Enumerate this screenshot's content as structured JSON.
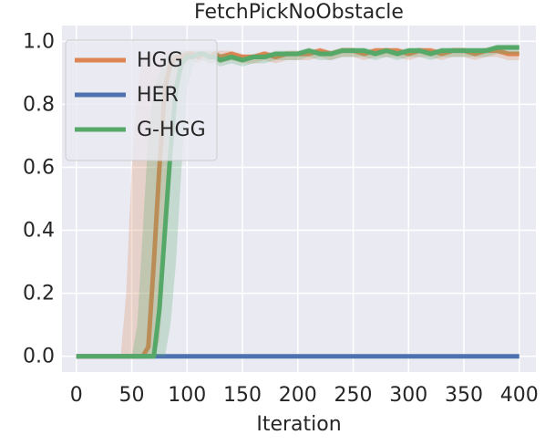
{
  "chart_data": {
    "type": "line",
    "title": "FetchPickNoObstacle",
    "xlabel": "Iteration",
    "x": [
      0,
      10,
      20,
      30,
      40,
      45,
      50,
      55,
      60,
      65,
      70,
      75,
      80,
      85,
      90,
      95,
      100,
      105,
      110,
      115,
      120,
      125,
      130,
      140,
      150,
      160,
      170,
      180,
      190,
      200,
      210,
      220,
      230,
      240,
      250,
      260,
      270,
      280,
      290,
      300,
      310,
      320,
      330,
      340,
      350,
      360,
      370,
      380,
      390,
      400
    ],
    "xlim": [
      -13,
      415
    ],
    "ylim": [
      -0.05,
      1.05
    ],
    "xticks": [
      0,
      50,
      100,
      150,
      200,
      250,
      300,
      350,
      400
    ],
    "yticks": [
      {
        "value": 0,
        "label": "0.0"
      },
      0.2,
      0.4,
      0.6,
      0.8,
      {
        "value": 1,
        "label": "1.0"
      }
    ],
    "grid": true,
    "legend": "upper left",
    "series": [
      {
        "name": "HGG",
        "color": "#dd8452",
        "values": [
          0,
          0,
          0,
          0,
          0,
          0,
          0,
          0,
          0,
          0.03,
          0.3,
          0.6,
          0.85,
          0.93,
          0.95,
          0.95,
          0.96,
          0.96,
          0.95,
          0.96,
          0.95,
          0.96,
          0.95,
          0.96,
          0.95,
          0.95,
          0.96,
          0.95,
          0.96,
          0.96,
          0.96,
          0.97,
          0.96,
          0.97,
          0.97,
          0.96,
          0.97,
          0.97,
          0.97,
          0.96,
          0.97,
          0.97,
          0.96,
          0.97,
          0.97,
          0.96,
          0.97,
          0.97,
          0.96,
          0.96
        ],
        "lower": [
          0,
          0,
          0,
          0,
          0,
          0,
          0,
          0,
          0,
          0,
          0,
          0.05,
          0.3,
          0.6,
          0.8,
          0.9,
          0.93,
          0.94,
          0.93,
          0.94,
          0.93,
          0.94,
          0.93,
          0.94,
          0.93,
          0.93,
          0.94,
          0.93,
          0.94,
          0.94,
          0.94,
          0.95,
          0.94,
          0.95,
          0.95,
          0.94,
          0.95,
          0.95,
          0.95,
          0.94,
          0.95,
          0.95,
          0.94,
          0.95,
          0.95,
          0.94,
          0.95,
          0.95,
          0.94,
          0.94
        ],
        "upper": [
          0,
          0,
          0,
          0,
          0,
          0.2,
          0.6,
          0.85,
          0.95,
          0.96,
          0.97,
          0.97,
          0.97,
          0.97,
          0.97,
          0.97,
          0.97,
          0.97,
          0.97,
          0.97,
          0.97,
          0.97,
          0.97,
          0.97,
          0.96,
          0.96,
          0.97,
          0.96,
          0.97,
          0.97,
          0.97,
          0.98,
          0.97,
          0.98,
          0.98,
          0.97,
          0.98,
          0.98,
          0.98,
          0.97,
          0.98,
          0.98,
          0.97,
          0.98,
          0.98,
          0.97,
          0.98,
          0.98,
          0.97,
          0.97
        ]
      },
      {
        "name": "HER",
        "color": "#4c72b0",
        "values": [
          0,
          0,
          0,
          0,
          0,
          0,
          0,
          0,
          0,
          0,
          0,
          0,
          0,
          0,
          0,
          0,
          0,
          0,
          0,
          0,
          0,
          0,
          0,
          0,
          0,
          0,
          0,
          0,
          0,
          0,
          0,
          0,
          0,
          0,
          0,
          0,
          0,
          0,
          0,
          0,
          0,
          0,
          0,
          0,
          0,
          0,
          0,
          0,
          0,
          0
        ]
      },
      {
        "name": "G-HGG",
        "color": "#55a868",
        "values": [
          0,
          0,
          0,
          0,
          0,
          0,
          0,
          0,
          0,
          0,
          0,
          0.15,
          0.4,
          0.65,
          0.85,
          0.93,
          0.95,
          0.95,
          0.96,
          0.96,
          0.95,
          0.95,
          0.94,
          0.95,
          0.94,
          0.95,
          0.95,
          0.96,
          0.96,
          0.96,
          0.97,
          0.96,
          0.96,
          0.97,
          0.97,
          0.97,
          0.96,
          0.97,
          0.96,
          0.97,
          0.97,
          0.96,
          0.97,
          0.97,
          0.97,
          0.97,
          0.97,
          0.98,
          0.98,
          0.98
        ],
        "lower": [
          0,
          0,
          0,
          0,
          0,
          0,
          0,
          0,
          0,
          0,
          0,
          0,
          0,
          0.1,
          0.3,
          0.6,
          0.85,
          0.92,
          0.94,
          0.94,
          0.93,
          0.93,
          0.92,
          0.93,
          0.92,
          0.93,
          0.93,
          0.94,
          0.94,
          0.94,
          0.95,
          0.94,
          0.94,
          0.95,
          0.95,
          0.95,
          0.94,
          0.95,
          0.94,
          0.95,
          0.95,
          0.94,
          0.95,
          0.95,
          0.95,
          0.95,
          0.95,
          0.96,
          0.96,
          0.96
        ],
        "upper": [
          0,
          0,
          0,
          0,
          0,
          0,
          0,
          0.1,
          0.4,
          0.7,
          0.85,
          0.9,
          0.95,
          0.96,
          0.97,
          0.97,
          0.97,
          0.97,
          0.97,
          0.97,
          0.97,
          0.97,
          0.96,
          0.96,
          0.95,
          0.96,
          0.96,
          0.97,
          0.97,
          0.97,
          0.98,
          0.97,
          0.97,
          0.98,
          0.98,
          0.98,
          0.97,
          0.98,
          0.97,
          0.98,
          0.98,
          0.97,
          0.98,
          0.98,
          0.98,
          0.98,
          0.98,
          0.99,
          0.99,
          0.99
        ]
      }
    ]
  }
}
